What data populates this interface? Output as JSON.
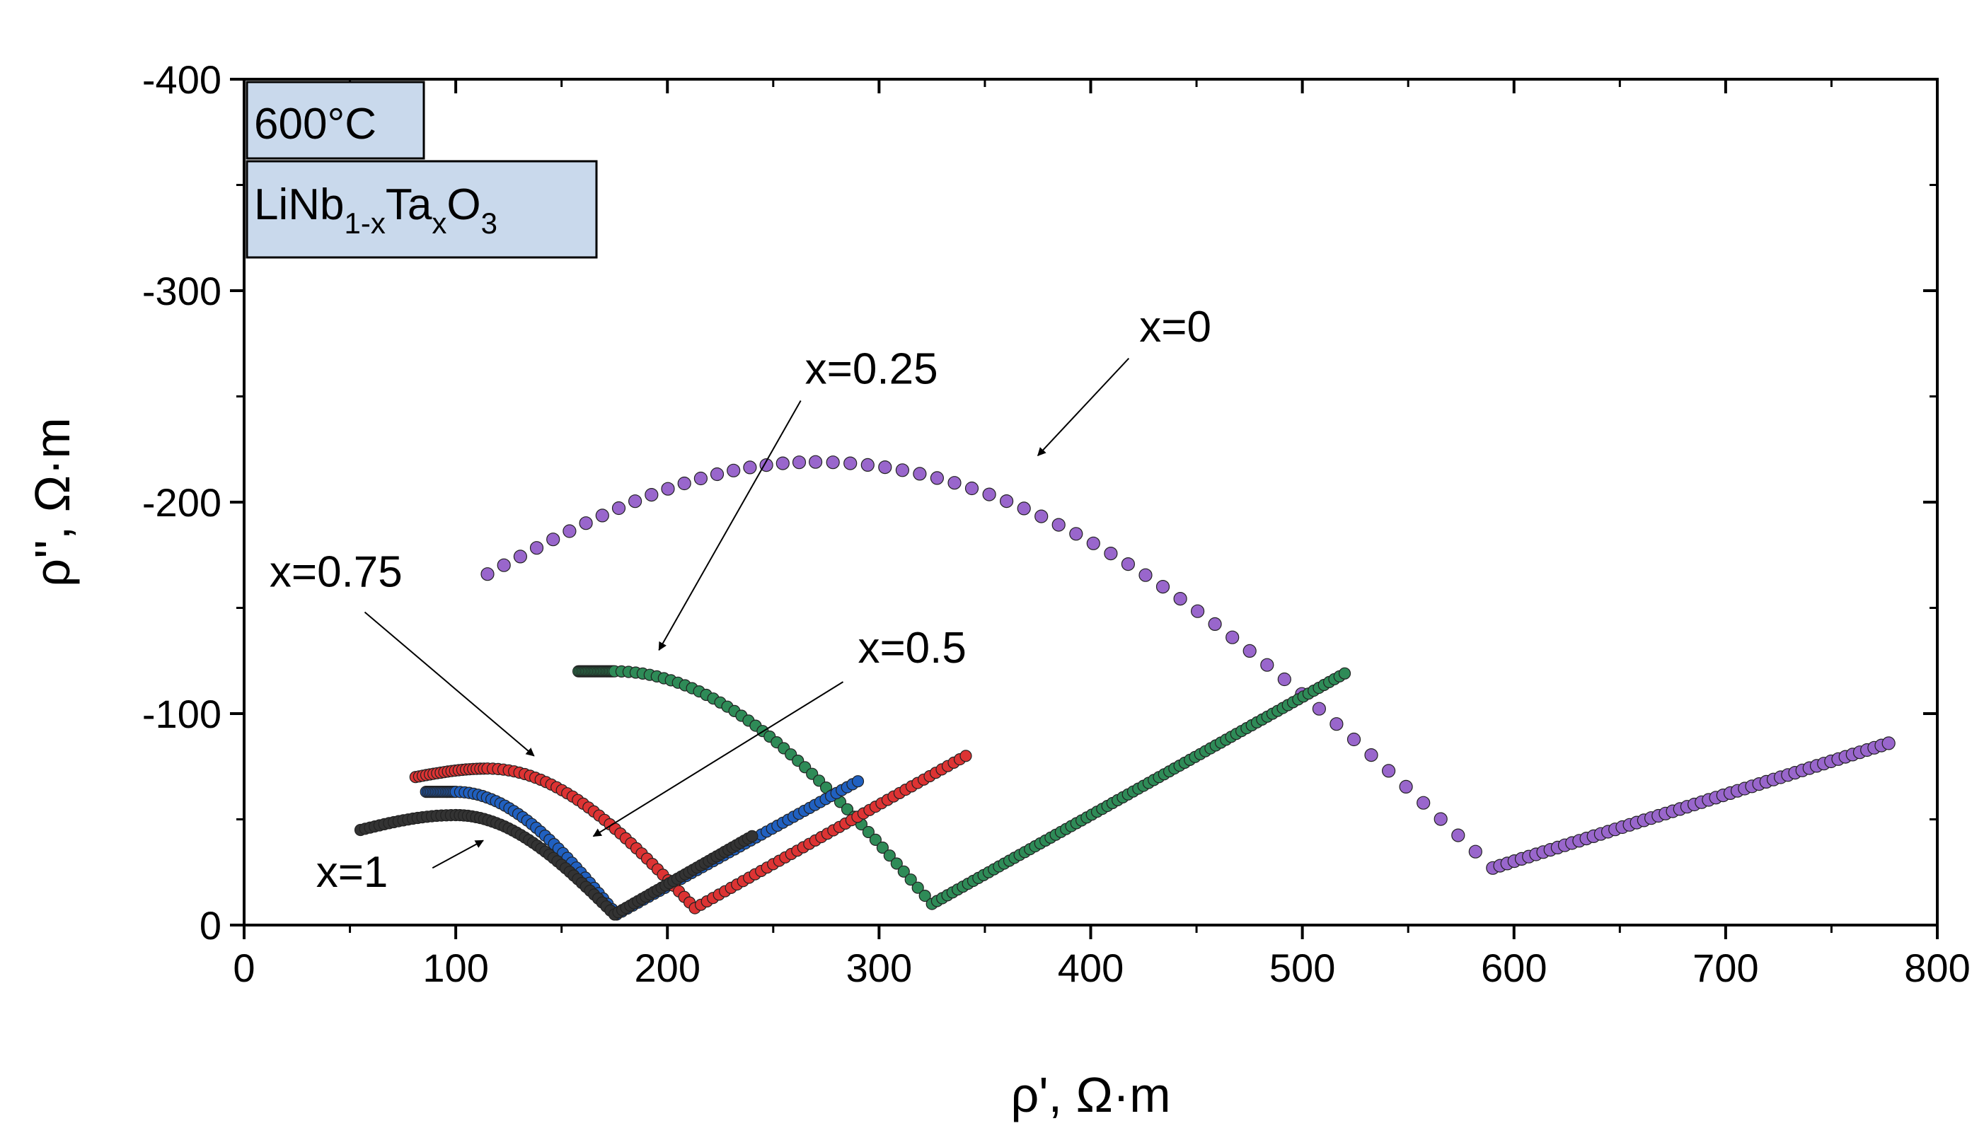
{
  "chart_data": {
    "type": "scatter",
    "title": "",
    "xlabel": "ρ', Ω·m",
    "ylabel": "ρ'', Ω·m",
    "xlim": [
      0,
      800
    ],
    "ylim": [
      0,
      -400
    ],
    "y_axis_inverted": true,
    "x_ticks": [
      0,
      100,
      200,
      300,
      400,
      500,
      600,
      700,
      800
    ],
    "y_ticks": [
      0,
      -100,
      -200,
      -300,
      -400
    ],
    "x_tick_labels": [
      "0",
      "100",
      "200",
      "300",
      "400",
      "500",
      "600",
      "700",
      "800"
    ],
    "y_tick_labels": [
      "0",
      "-100",
      "-200",
      "-300",
      "-400"
    ],
    "grid": false,
    "inset_labels": {
      "temperature": "600°C",
      "material": {
        "base": "LiNb",
        "sub1": "1-x",
        "mid1": "Ta",
        "sub2": "x",
        "mid2": "O",
        "sub3": "3"
      }
    },
    "series": [
      {
        "name": "x=0",
        "color": "#9966cc",
        "label": "x=0",
        "arc": {
          "x_start": 115,
          "y_start": -166,
          "x_peak": 270,
          "y_peak": -219,
          "x_min": 590,
          "y_min": -27
        },
        "tail": {
          "x_start": 590,
          "y_start": -27,
          "x_end": 777,
          "y_end": -86
        }
      },
      {
        "name": "x=0.25",
        "color": "#2e8b57",
        "label": "x=0.25",
        "arc": {
          "x_start": 158,
          "y_start": -120,
          "x_peak": 175,
          "y_peak": -120,
          "x_min": 325,
          "y_min": -10
        },
        "tail": {
          "x_start": 325,
          "y_start": -10,
          "x_end": 520,
          "y_end": -119
        }
      },
      {
        "name": "x=0.5",
        "color": "#2060c0",
        "label": "x=0.5",
        "arc": {
          "x_start": 86,
          "y_start": -63,
          "x_peak": 100,
          "y_peak": -63,
          "x_min": 176,
          "y_min": -5
        },
        "tail": {
          "x_start": 176,
          "y_start": -5,
          "x_end": 290,
          "y_end": -68
        }
      },
      {
        "name": "x=0.75",
        "color": "#dd3333",
        "label": "x=0.75",
        "arc": {
          "x_start": 81,
          "y_start": -70,
          "x_peak": 115,
          "y_peak": -74,
          "x_min": 213,
          "y_min": -8
        },
        "tail": {
          "x_start": 213,
          "y_start": -8,
          "x_end": 341,
          "y_end": -80
        }
      },
      {
        "name": "x=1",
        "color": "#333333",
        "label": "x=1",
        "arc": {
          "x_start": 55,
          "y_start": -45,
          "x_peak": 100,
          "y_peak": -52,
          "x_min": 175,
          "y_min": -5
        },
        "tail": {
          "x_start": 175,
          "y_start": -5,
          "x_end": 240,
          "y_end": -42
        }
      }
    ],
    "annotations": [
      {
        "text": "x=0",
        "series": "x=0",
        "label_at": [
          423,
          -276
        ],
        "arrow_from": [
          418,
          -268
        ],
        "arrow_to": [
          375,
          -222
        ]
      },
      {
        "text": "x=0.25",
        "series": "x=0.25",
        "label_at": [
          265,
          -256
        ],
        "arrow_from": [
          263,
          -248
        ],
        "arrow_to": [
          196,
          -130
        ]
      },
      {
        "text": "x=0.5",
        "series": "x=0.5",
        "label_at": [
          290,
          -124
        ],
        "arrow_from": [
          283,
          -115
        ],
        "arrow_to": [
          165,
          -42
        ]
      },
      {
        "text": "x=0.75",
        "series": "x=0.75",
        "label_at": [
          12,
          -160
        ],
        "arrow_from": [
          57,
          -148
        ],
        "arrow_to": [
          137,
          -80
        ]
      },
      {
        "text": "x=1",
        "series": "x=1",
        "label_at": [
          34,
          -18
        ],
        "arrow_from": [
          89,
          -27
        ],
        "arrow_to": [
          113,
          -40
        ]
      }
    ]
  }
}
